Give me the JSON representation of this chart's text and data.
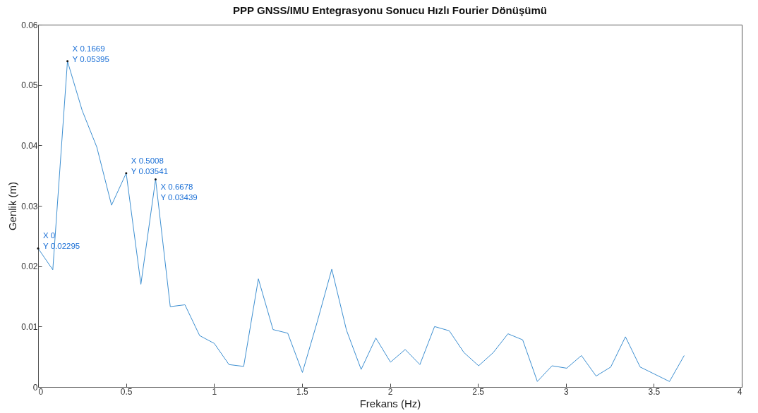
{
  "chart_data": {
    "type": "line",
    "title": "PPP GNSS/IMU Entegrasyonu Sonucu Hızlı Fourier Dönüşümü",
    "xlabel": "Frekans (Hz)",
    "ylabel": "Genlik (m)",
    "x": [
      0,
      0.0835,
      0.1669,
      0.2504,
      0.3339,
      0.4174,
      0.5008,
      0.5843,
      0.6678,
      0.7512,
      0.8347,
      0.9182,
      1.0016,
      1.0851,
      1.1686,
      1.2521,
      1.3355,
      1.419,
      1.5025,
      1.5859,
      1.6694,
      1.7529,
      1.8363,
      1.9198,
      2.0033,
      2.0868,
      2.1702,
      2.2537,
      2.3372,
      2.4206,
      2.5041,
      2.5876,
      2.671,
      2.7545,
      2.838,
      2.9215,
      3.0049,
      3.0884,
      3.1719,
      3.2553,
      3.3388,
      3.4223,
      3.5057,
      3.5892,
      3.6727
    ],
    "series": [
      {
        "color": "#3d8fd1",
        "values": [
          0.02295,
          0.0194,
          0.05395,
          0.0458,
          0.0397,
          0.0301,
          0.03541,
          0.017,
          0.03439,
          0.0133,
          0.0136,
          0.0085,
          0.0072,
          0.0037,
          0.0034,
          0.0179,
          0.0095,
          0.0089,
          0.0024,
          0.0107,
          0.0195,
          0.0094,
          0.0029,
          0.0081,
          0.0041,
          0.0062,
          0.0037,
          0.01,
          0.0093,
          0.0057,
          0.0035,
          0.0057,
          0.0088,
          0.0078,
          0.0009,
          0.0035,
          0.0031,
          0.0052,
          0.0018,
          0.0033,
          0.0083,
          0.0033,
          0.0021,
          0.0009,
          0.0052
        ]
      }
    ],
    "xlim": [
      0,
      4
    ],
    "xticks": [
      0,
      0.5,
      1,
      1.5,
      2,
      2.5,
      3,
      3.5,
      4
    ],
    "ylim": [
      0,
      0.06
    ],
    "yticks": [
      0,
      0.01,
      0.02,
      0.03,
      0.04,
      0.05,
      0.06
    ],
    "grid": false,
    "line_style": "solid",
    "marker": "none",
    "annotations": [
      {
        "text": "X 0\nY 0.02295",
        "x": 0,
        "y": 0.02295
      },
      {
        "text": "X 0.1669\nY 0.05395",
        "x": 0.1669,
        "y": 0.05395
      },
      {
        "text": "X 0.5008\nY 0.03541",
        "x": 0.5008,
        "y": 0.03541
      },
      {
        "text": "X 0.6678\nY 0.03439",
        "x": 0.6678,
        "y": 0.03439
      }
    ]
  }
}
